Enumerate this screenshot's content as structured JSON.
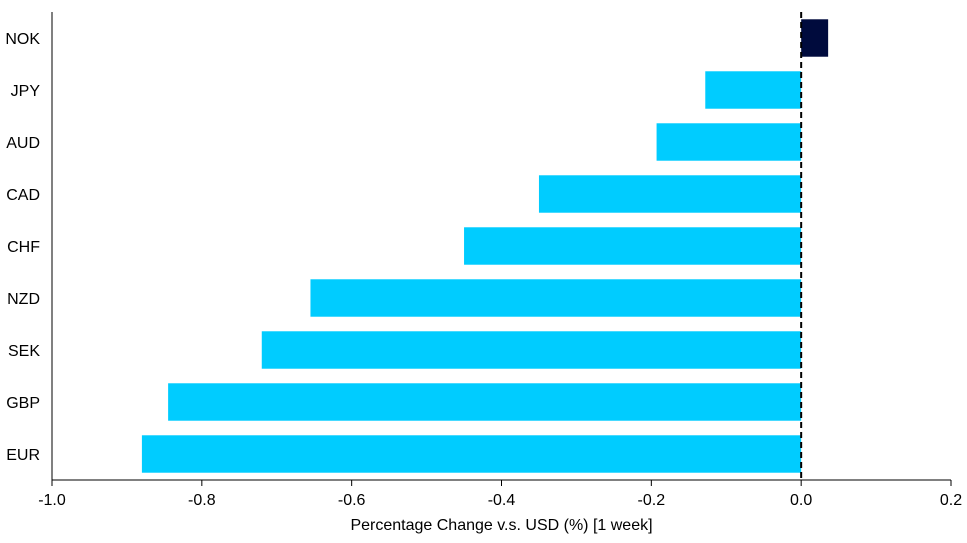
{
  "chart_data": {
    "type": "bar",
    "orientation": "horizontal",
    "categories": [
      "NOK",
      "JPY",
      "AUD",
      "CAD",
      "CHF",
      "NZD",
      "SEK",
      "GBP",
      "EUR"
    ],
    "values": [
      0.036,
      -0.128,
      -0.193,
      -0.35,
      -0.45,
      -0.655,
      -0.72,
      -0.845,
      -0.88
    ],
    "xlabel": "Percentage Change v.s. USD (%) [1 week]",
    "ylabel": "",
    "xlim": [
      -1.0,
      0.2
    ],
    "xticks": [
      "-1.0",
      "-0.8",
      "-0.6",
      "-0.4",
      "-0.2",
      "0.0",
      "0.2"
    ],
    "grid": false,
    "zero_line": "dashed",
    "colors": {
      "positive": "#000b3d",
      "negative": "#00ccff"
    }
  }
}
